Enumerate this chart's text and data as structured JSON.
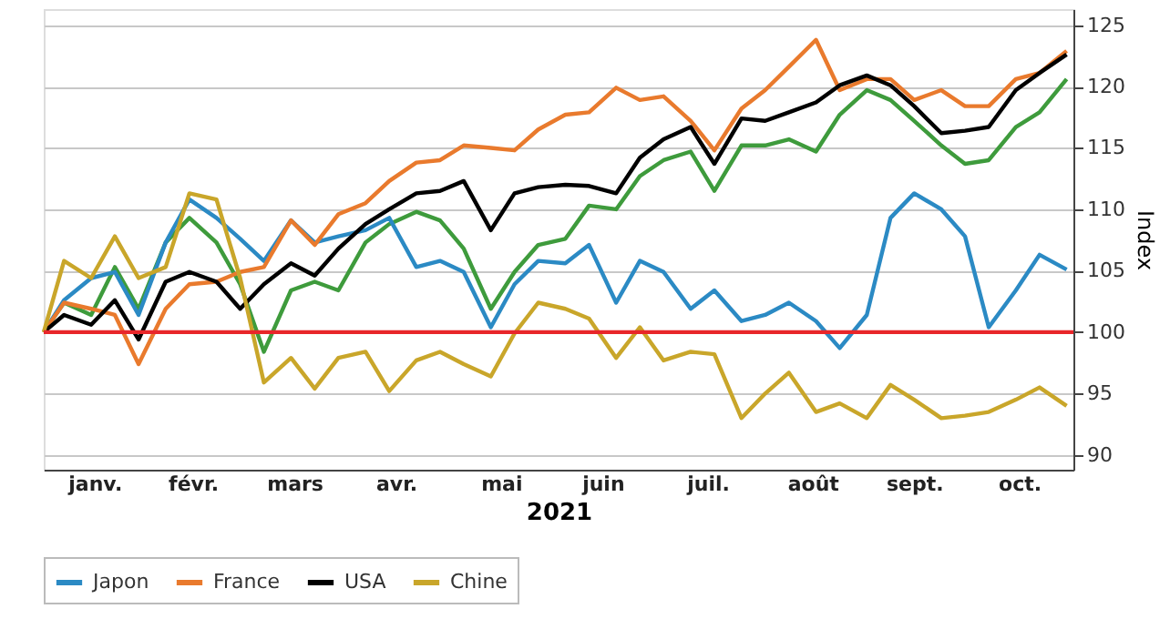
{
  "chart_data": {
    "type": "line",
    "xlabel": "2021",
    "ylabel": "Index",
    "x": [
      "2021-01-01",
      "2021-01-07",
      "2021-01-15",
      "2021-01-22",
      "2021-01-29",
      "2021-02-06",
      "2021-02-13",
      "2021-02-21",
      "2021-02-28",
      "2021-03-07",
      "2021-03-15",
      "2021-03-22",
      "2021-03-29",
      "2021-04-06",
      "2021-04-13",
      "2021-04-21",
      "2021-04-28",
      "2021-05-05",
      "2021-05-13",
      "2021-05-20",
      "2021-05-27",
      "2021-06-04",
      "2021-06-11",
      "2021-06-19",
      "2021-06-26",
      "2021-07-03",
      "2021-07-11",
      "2021-07-18",
      "2021-07-26",
      "2021-08-02",
      "2021-08-09",
      "2021-08-17",
      "2021-08-24",
      "2021-09-01",
      "2021-09-08",
      "2021-09-15",
      "2021-09-23",
      "2021-09-30",
      "2021-10-07",
      "2021-10-15",
      "2021-10-22",
      "2021-10-30"
    ],
    "xlim": [
      "2021-01-01",
      "2021-11-01"
    ],
    "xticks": [
      {
        "value": "2021-01-16",
        "label": "janv."
      },
      {
        "value": "2021-02-14",
        "label": "févr."
      },
      {
        "value": "2021-03-16",
        "label": "mars"
      },
      {
        "value": "2021-04-15",
        "label": "avr."
      },
      {
        "value": "2021-05-16",
        "label": "mai"
      },
      {
        "value": "2021-06-15",
        "label": "juin"
      },
      {
        "value": "2021-07-16",
        "label": "juil."
      },
      {
        "value": "2021-08-16",
        "label": "août"
      },
      {
        "value": "2021-09-15",
        "label": "sept."
      },
      {
        "value": "2021-10-16",
        "label": "oct."
      }
    ],
    "ylim": [
      88.8,
      126.3
    ],
    "yticks": [
      90,
      95,
      100,
      105,
      110,
      115,
      120,
      125
    ],
    "grid": "y",
    "legend": "bottom",
    "line_style": "solid",
    "marker": "none",
    "ref_lines": [
      {
        "axis": "y",
        "value": 100,
        "color": "#e8262a"
      }
    ],
    "series": [
      {
        "color": "#3e9b3c",
        "values": [
          100,
          102.4,
          101.4,
          105.3,
          101.9,
          107.3,
          109.3,
          107.3,
          103.9,
          98.4,
          103.4,
          104.1,
          103.4,
          107.3,
          108.8,
          109.8,
          109.1,
          106.8,
          101.9,
          104.9,
          107.1,
          107.6,
          110.3,
          110,
          112.7,
          114,
          114.7,
          111.5,
          115.2,
          115.2,
          115.7,
          114.7,
          117.7,
          119.7,
          118.9,
          117.2,
          115.2,
          113.7,
          114,
          116.7,
          117.9,
          120.6
        ]
      },
      {
        "name": "Japon",
        "color": "#2b8ac4",
        "values": [
          100,
          102.6,
          104.4,
          104.9,
          101.4,
          107.3,
          110.8,
          109.3,
          107.6,
          105.8,
          109.1,
          107.3,
          107.8,
          108.3,
          109.3,
          105.3,
          105.8,
          104.9,
          100.4,
          103.9,
          105.8,
          105.6,
          107.1,
          102.4,
          105.8,
          104.9,
          101.9,
          103.4,
          100.9,
          101.4,
          102.4,
          100.9,
          98.7,
          101.4,
          109.3,
          111.3,
          110,
          107.8,
          100.4,
          103.4,
          106.3,
          105.1
        ]
      },
      {
        "name": "France",
        "color": "#e97a2d",
        "values": [
          100,
          102.4,
          101.9,
          101.4,
          97.4,
          101.9,
          103.9,
          104.1,
          104.9,
          105.3,
          109.1,
          107.1,
          109.6,
          110.5,
          112.3,
          113.8,
          114,
          115.2,
          115,
          114.8,
          116.5,
          117.7,
          117.9,
          119.9,
          118.9,
          119.2,
          117.2,
          114.8,
          118.2,
          119.7,
          121.6,
          123.8,
          119.7,
          120.6,
          120.6,
          118.9,
          119.7,
          118.4,
          118.4,
          120.6,
          121.1,
          122.9
        ]
      },
      {
        "name": "USA",
        "color": "#000000",
        "values": [
          100,
          101.4,
          100.6,
          102.6,
          99.4,
          104.1,
          104.9,
          104.1,
          101.9,
          103.9,
          105.6,
          104.6,
          106.8,
          108.8,
          110,
          111.3,
          111.5,
          112.3,
          108.3,
          111.3,
          111.8,
          112,
          111.9,
          111.3,
          114.2,
          115.7,
          116.7,
          113.7,
          117.4,
          117.2,
          117.9,
          118.7,
          120.1,
          120.9,
          120.1,
          118.4,
          116.2,
          116.4,
          116.7,
          119.7,
          121.1,
          122.6
        ]
      },
      {
        "name": "Chine",
        "color": "#c9a62a",
        "values": [
          100,
          105.8,
          104.4,
          107.8,
          104.4,
          105.3,
          111.3,
          110.8,
          104.4,
          95.9,
          97.9,
          95.4,
          97.9,
          98.4,
          95.2,
          97.7,
          98.4,
          97.4,
          96.4,
          99.9,
          102.4,
          101.9,
          101.1,
          97.9,
          100.4,
          97.7,
          98.4,
          98.2,
          93,
          95,
          96.7,
          93.5,
          94.2,
          93,
          95.7,
          94.5,
          93,
          93.2,
          93.5,
          94.5,
          95.5,
          94
        ]
      }
    ]
  }
}
